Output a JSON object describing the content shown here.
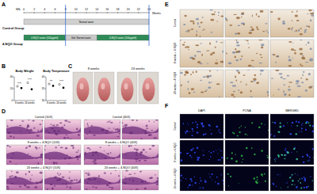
{
  "panel_labels": [
    "A",
    "B",
    "C",
    "D",
    "E",
    "F"
  ],
  "timeline": {
    "start_label": "Wk",
    "unit_label": "Weeks",
    "weeks": [
      0,
      2,
      4,
      6,
      8,
      10,
      12,
      14,
      16,
      18,
      20,
      22,
      24
    ],
    "sacrifice_weeks": [
      8,
      24
    ],
    "groups": [
      {
        "name": "Control Group",
        "segments": [
          {
            "label": "Normal water",
            "start": 0,
            "end": 24,
            "color": "#d0d0d0"
          }
        ]
      },
      {
        "name": "4-NQO Group",
        "segments": [
          {
            "label": "4-NQO water (100µg/ml)",
            "start": 0,
            "end": 8,
            "color": "#2e8b57"
          },
          {
            "label": "Std. Normal water",
            "start": 8,
            "end": 14,
            "color": "#c8c8c8"
          },
          {
            "label": "4-NQO water (100µg/ml)",
            "start": 14,
            "end": 24,
            "color": "#2e8b57"
          }
        ]
      }
    ]
  },
  "chart_data": [
    {
      "type": "scatter",
      "title": "Body Weight",
      "categories": [
        "8 weeks",
        "24 weeks"
      ],
      "series": [
        {
          "color": "#000000",
          "marker": "circle",
          "values": [
            24,
            30
          ]
        },
        {
          "color": "#000000",
          "marker": "square",
          "values": [
            21,
            19
          ]
        }
      ],
      "ylim": [
        0,
        40
      ],
      "yticks": [
        0,
        20,
        40
      ],
      "annotations": [
        "****",
        "****"
      ]
    },
    {
      "type": "scatter",
      "title": "Body Temperature",
      "categories": [
        "8 weeks",
        "24 weeks"
      ],
      "series": [
        {
          "color": "#000000",
          "marker": "circle",
          "values": [
            37.0,
            36.8
          ]
        },
        {
          "color": "#000000",
          "marker": "square",
          "values": [
            36.2,
            35.4
          ]
        }
      ],
      "ylim": [
        30,
        40
      ],
      "yticks": [
        30,
        35,
        40
      ],
      "annotations": [
        "***",
        "****"
      ]
    }
  ],
  "photos": {
    "labels": [
      "8 weeks",
      "24 weeks"
    ]
  },
  "histology": {
    "labels": [
      [
        "Control (10X)",
        "Control (40X)"
      ],
      [
        "8 weeks + 4-NQO (10X)",
        "8 weeks + 4-NQO (40X)"
      ],
      [
        "24 weeks + 4-NQO (10X)",
        "24 weeks + 4-NQO (40X)"
      ]
    ]
  },
  "ihc": {
    "rows": [
      "Control",
      "8 weeks + 4-NQO",
      "24 weeks + 4-NQO"
    ]
  },
  "fluorescence": {
    "columns": [
      "DAPI",
      "PCNA",
      "MERGED"
    ],
    "rows": [
      "Control",
      "8 weeks + 4-NQO",
      "24 weeks + 4-NQO"
    ]
  }
}
